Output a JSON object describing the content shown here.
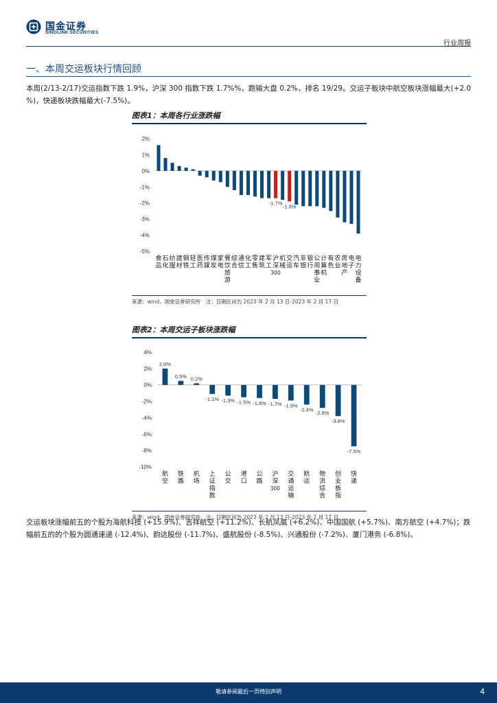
{
  "header": {
    "brand_cn": "国金证券",
    "brand_en": "SINOLINK SECURITIES",
    "report_type": "行业周报"
  },
  "section": {
    "title": "一、本周交运板块行情回顾"
  },
  "paragraphs": {
    "p1": "本周(2/13-2/17)交运指数下跌 1.9%，沪深 300 指数下跌 1.7%%，跑输大盘 0.2%，排名 19/29。交运子板块中航空板块涨幅最大(+2.0 %)，快递板块跌幅最大(-7.5%)。",
    "p2": "交运板块涨幅前五的个股为海航科技 (+15.9%)、吉祥航空 (+11.2%)、长航凤凰 (+6.2%)、中国国航 (+5.7%)、南方航空 (+4.7%)；跌幅前五的的个股为圆通速递 (-12.4%)、韵达股份 (-11.7%)、盛航股份 (-8.5%)、兴通股份 (-7.2%)、厦门港务 (-6.8%)。"
  },
  "figure1": {
    "title": "图表1：本周各行业涨跌幅",
    "source": "来源：wind，国金证券研究所　注：日期区间为 2023 年 2 月 13 日-2023 年 2 月 17 日"
  },
  "figure2": {
    "title": "图表2：本周交运子板块涨跌幅",
    "source": "来源：wind，国金证券研究所　注：日期区间为 2023 年 2 月 13 日-2023 年 2 月 17 日"
  },
  "footer": {
    "text": "敬请参阅最后一页特别声明",
    "page": "4"
  },
  "colors": {
    "brand": "#0b3a6e",
    "bar": "#0d4a7a",
    "highlight": "#d7191c"
  },
  "chart_data": [
    {
      "type": "bar",
      "title": "图表1：本周各行业涨跌幅",
      "categories": [
        "食品",
        "石化",
        "纺服",
        "建材",
        "钢铁",
        "轻工",
        "医药",
        "传媒",
        "煤炭",
        "家电",
        "餐饮旅游",
        "综合",
        "通信",
        "化工",
        "零售",
        "建筑",
        "军工",
        "沪深300",
        "机械",
        "交运",
        "汽车",
        "非银",
        "银行",
        "公用事业",
        "计算机",
        "有色",
        "农业",
        "房地产",
        "电子",
        "电力设备"
      ],
      "category_labels": [
        "食\n品",
        "石\n化",
        "纺\n服",
        "建\n材",
        "钢\n铁",
        "轻\n工",
        "医\n药",
        "传\n媒",
        "煤\n炭",
        "家\n电",
        "餐\n饮\n旅\n游",
        "综\n合",
        "通\n信",
        "化\n工",
        "零\n售",
        "建\n筑",
        "军\n工",
        "沪\n深\n300",
        "机\n械",
        "交\n运",
        "汽\n车",
        "非\n银",
        "银\n行",
        "公\n用\n事\n业",
        "计\n算\n机",
        "有\n色",
        "农\n业",
        "房\n地\n产",
        "电\n子",
        "电\n力\n设\n备"
      ],
      "values": [
        1.6,
        0.8,
        0.5,
        0.3,
        0.2,
        0.1,
        -0.3,
        -0.4,
        -0.6,
        -0.7,
        -1.0,
        -1.2,
        -1.5,
        -1.5,
        -1.6,
        -1.7,
        -1.7,
        -1.7,
        -1.8,
        -1.9,
        -2.1,
        -2.2,
        -2.2,
        -2.2,
        -2.3,
        -2.5,
        -2.9,
        -3.2,
        -3.3,
        -3.9
      ],
      "highlight": [
        "沪深300",
        "交运"
      ],
      "data_labels": [
        {
          "category": "沪深300",
          "text": "-1.7%"
        },
        {
          "category": "交运",
          "text": "-1.9%"
        }
      ],
      "yticks": [
        "2%",
        "1%",
        "0%",
        "-1%",
        "-2%",
        "-3%",
        "-4%",
        "-5%"
      ],
      "ylim": [
        -5,
        2
      ],
      "grid": false
    },
    {
      "type": "bar",
      "title": "图表2：本周交运子板块涨跌幅",
      "categories": [
        "航空",
        "铁路",
        "机场",
        "上证指数",
        "公交",
        "港口",
        "公路",
        "沪深300",
        "交通运输",
        "航运",
        "物流综合",
        "创业板指",
        "快递"
      ],
      "category_labels": [
        "航\n空",
        "铁\n路",
        "机\n场",
        "上\n证\n指\n数",
        "公\n交",
        "港\n口",
        "公\n路",
        "沪\n深\n300",
        "交\n通\n运\n输",
        "航\n运",
        "物\n流\n综\n合",
        "创\n业\n板\n指",
        "快\n递"
      ],
      "values": [
        2.0,
        0.5,
        0.2,
        -1.1,
        -1.3,
        -1.5,
        -1.6,
        -1.7,
        -1.9,
        -2.4,
        -2.8,
        -3.8,
        -7.5
      ],
      "value_labels": [
        "2.0%",
        "0.5%",
        "0.2%",
        "-1.1%",
        "-1.3%",
        "-1.5%",
        "-1.6%",
        "-1.7%",
        "-1.9%",
        "-2.4%",
        "-2.8%",
        "-3.8%",
        "-7.5%"
      ],
      "yticks": [
        "4%",
        "2%",
        "0%",
        "-2%",
        "-4%",
        "-6%",
        "-8%",
        "-10%"
      ],
      "ylim": [
        -10,
        4
      ],
      "grid": false
    }
  ]
}
